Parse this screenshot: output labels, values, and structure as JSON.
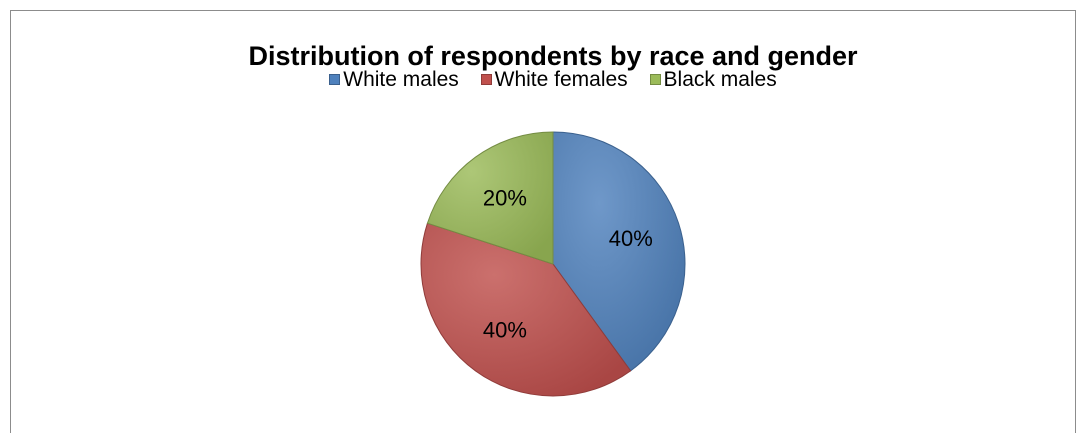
{
  "chart_data": {
    "type": "pie",
    "title": "Distribution of respondents by race and gender",
    "categories": [
      "White males",
      "White females",
      "Black males"
    ],
    "values": [
      40,
      40,
      20
    ],
    "value_labels": [
      "40%",
      "40%",
      "20%"
    ],
    "colors": [
      "#4f81bd",
      "#c0504d",
      "#9bbb59"
    ],
    "legend_placement": "top",
    "start_angle": "12 o'clock",
    "direction": "clockwise",
    "style": "3D-shaded pie"
  },
  "legend": {
    "items": [
      {
        "label": "White males",
        "color": "#4f81bd"
      },
      {
        "label": "White females",
        "color": "#c0504d"
      },
      {
        "label": "Black males",
        "color": "#9bbb59"
      }
    ]
  }
}
